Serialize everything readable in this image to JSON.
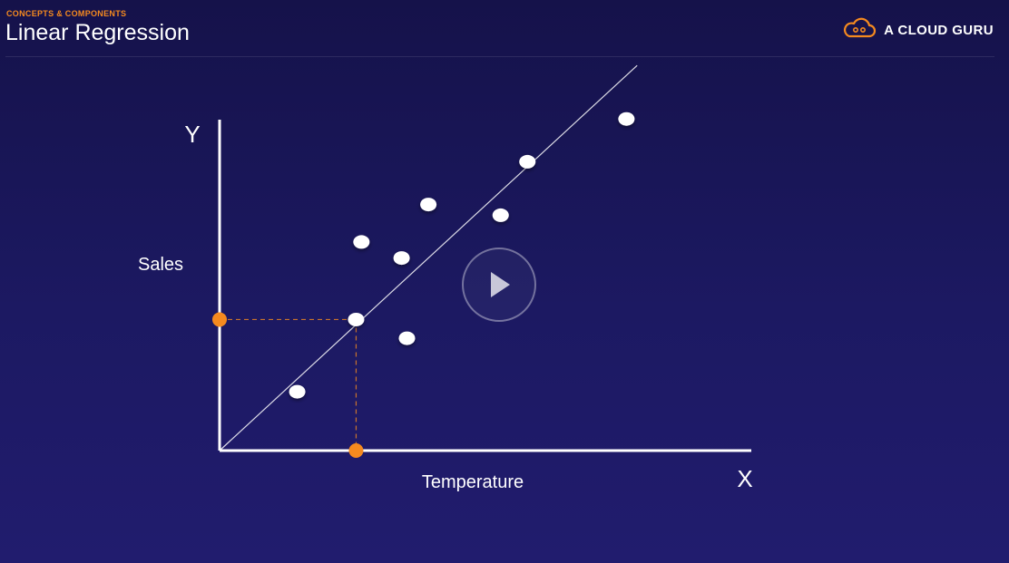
{
  "header": {
    "kicker": "CONCEPTS & COMPONENTS",
    "title": "Linear Regression",
    "brand_name": "A CLOUD GURU",
    "brand_icon": "cloud-logo-icon",
    "accent_color": "#f58a1f"
  },
  "video": {
    "play_icon": "play-icon"
  },
  "chart_data": {
    "type": "scatter",
    "title": "",
    "axis_letters": {
      "x": "X",
      "y": "Y"
    },
    "xlabel": "Temperature",
    "ylabel": "Sales",
    "xlim": [
      0,
      10
    ],
    "ylim": [
      0,
      7
    ],
    "grid": false,
    "points": [
      {
        "x": 1.45,
        "y": 1.1
      },
      {
        "x": 2.55,
        "y": 2.45
      },
      {
        "x": 2.65,
        "y": 3.9
      },
      {
        "x": 3.4,
        "y": 3.6
      },
      {
        "x": 3.5,
        "y": 2.1
      },
      {
        "x": 3.9,
        "y": 4.6
      },
      {
        "x": 5.25,
        "y": 4.4
      },
      {
        "x": 5.75,
        "y": 5.4
      },
      {
        "x": 7.6,
        "y": 6.2
      }
    ],
    "regression_line": {
      "x": [
        0,
        7.8
      ],
      "y": [
        0,
        7.2
      ]
    },
    "highlight": {
      "x": 2.55,
      "y": 2.45,
      "marker_color": "#f58a1f"
    }
  }
}
